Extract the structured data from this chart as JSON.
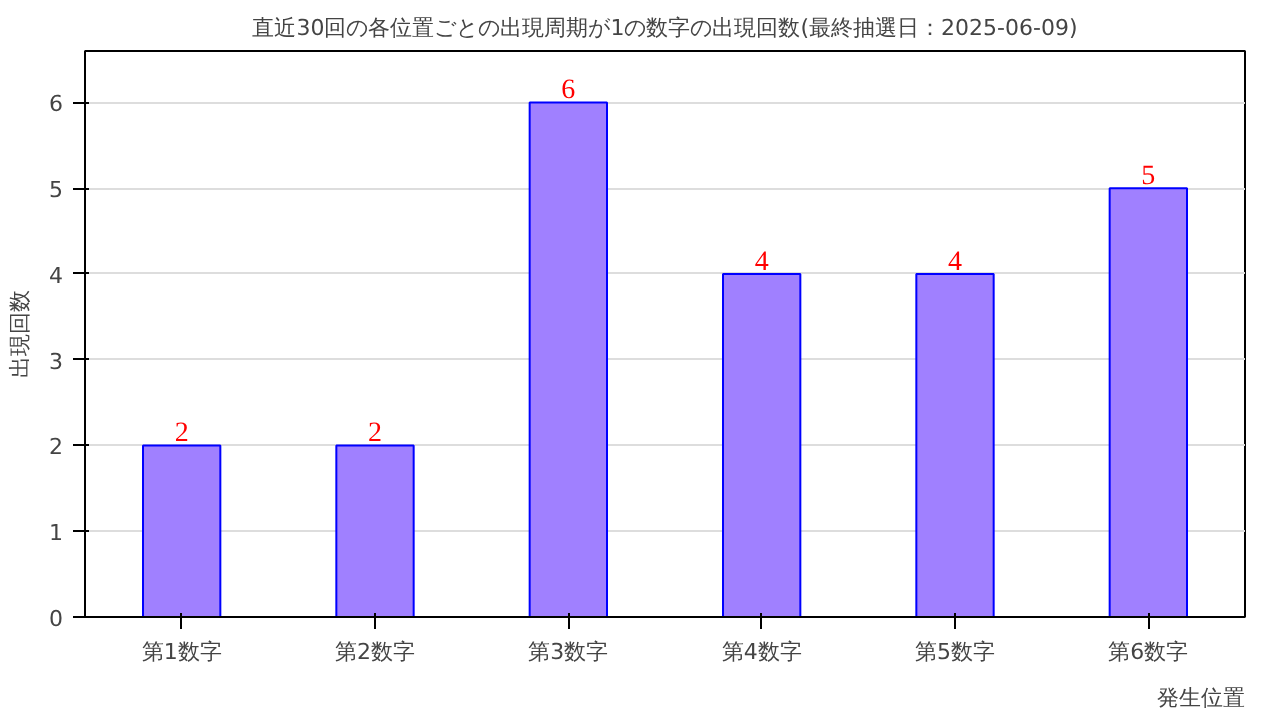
{
  "chart_data": {
    "type": "bar",
    "title": "直近30回の各位置ごとの出現周期が1の数字の出現回数(最終抽選日：2025-06-09)",
    "xlabel": "発生位置",
    "ylabel": "出現回数",
    "categories": [
      "第1数字",
      "第2数字",
      "第3数字",
      "第4数字",
      "第5数字",
      "第6数字"
    ],
    "series": [
      {
        "color": "#a080ff",
        "values": [
          2,
          2,
          6,
          4,
          4,
          5
        ]
      }
    ],
    "ylim": [
      0,
      6.6
    ],
    "yticks": [
      0,
      1,
      2,
      3,
      4,
      5,
      6
    ],
    "grid": "y",
    "data_labels": true
  }
}
